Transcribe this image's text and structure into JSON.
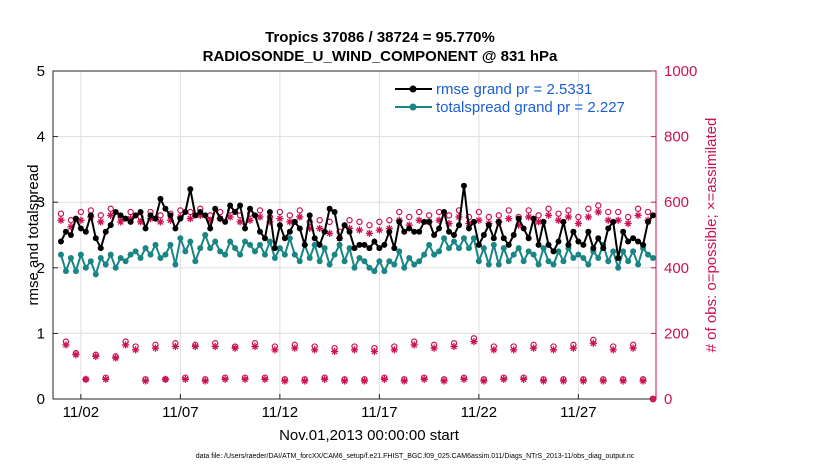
{
  "title_line1": "Tropics 37086 / 38724 = 95.770%",
  "title_line2": "RADIOSONDE_U_WIND_COMPONENT @ 831 hPa",
  "footer": "data file: /Users/raeder/DAI/ATM_forcXX/CAM6_setup/f.e21.FHIST_BGC.f09_025.CAM6assim.011/Diags_NTrS_2013-11/obs_diag_output.nc",
  "colors": {
    "rmse": "#000000",
    "spread": "#1a8585",
    "obs": "#cc1155",
    "legend_text": "#1a5fd8"
  },
  "chart_data": {
    "type": "line",
    "xlabel": "Nov.01,2013 00:00:00 start",
    "ylabel_left": "rmse and totalspread",
    "ylabel_right": "# of obs: o=possible; ×=assimilated",
    "xlim": [
      0.6,
      30.9
    ],
    "ylim_left": [
      0,
      5
    ],
    "ylim_right": [
      0,
      1000
    ],
    "x_ticks": [
      {
        "value": 2,
        "label": "11/02"
      },
      {
        "value": 7,
        "label": "11/07"
      },
      {
        "value": 12,
        "label": "11/12"
      },
      {
        "value": 17,
        "label": "11/17"
      },
      {
        "value": 22,
        "label": "11/22"
      },
      {
        "value": 27,
        "label": "11/27"
      }
    ],
    "y_ticks_left": [
      0,
      1,
      2,
      3,
      4,
      5
    ],
    "y_ticks_right": [
      0,
      200,
      400,
      600,
      800,
      1000
    ],
    "grid": true,
    "legend_position": "top-right",
    "x": [
      1.0,
      1.25,
      1.5,
      1.75,
      2.0,
      2.25,
      2.5,
      2.75,
      3.0,
      3.25,
      3.5,
      3.75,
      4.0,
      4.25,
      4.5,
      4.75,
      5.0,
      5.25,
      5.5,
      5.75,
      6.0,
      6.25,
      6.5,
      6.75,
      7.0,
      7.25,
      7.5,
      7.75,
      8.0,
      8.25,
      8.5,
      8.75,
      9.0,
      9.25,
      9.5,
      9.75,
      10.0,
      10.25,
      10.5,
      10.75,
      11.0,
      11.25,
      11.5,
      11.75,
      12.0,
      12.25,
      12.5,
      12.75,
      13.0,
      13.25,
      13.5,
      13.75,
      14.0,
      14.25,
      14.5,
      14.75,
      15.0,
      15.25,
      15.5,
      15.75,
      16.0,
      16.25,
      16.5,
      16.75,
      17.0,
      17.25,
      17.5,
      17.75,
      18.0,
      18.25,
      18.5,
      18.75,
      19.0,
      19.25,
      19.5,
      19.75,
      20.0,
      20.25,
      20.5,
      20.75,
      21.0,
      21.25,
      21.5,
      21.75,
      22.0,
      22.25,
      22.5,
      22.75,
      23.0,
      23.25,
      23.5,
      23.75,
      24.0,
      24.25,
      24.5,
      24.75,
      25.0,
      25.25,
      25.5,
      25.75,
      26.0,
      26.25,
      26.5,
      26.75,
      27.0,
      27.25,
      27.5,
      27.75,
      28.0,
      28.25,
      28.5,
      28.75,
      29.0,
      29.25,
      29.5,
      29.75,
      30.0,
      30.25,
      30.5,
      30.75
    ],
    "series": [
      {
        "name": "rmse",
        "legend": "rmse grand pr = 2.5331",
        "axis": "left",
        "values": [
          2.4,
          2.55,
          2.5,
          2.75,
          2.6,
          2.55,
          2.8,
          2.45,
          2.3,
          2.55,
          2.65,
          2.85,
          2.8,
          2.75,
          2.7,
          2.8,
          2.85,
          2.6,
          2.8,
          2.75,
          3.05,
          2.9,
          2.8,
          2.6,
          2.75,
          2.85,
          3.2,
          2.8,
          2.85,
          2.8,
          2.6,
          2.9,
          2.75,
          2.7,
          2.95,
          2.85,
          2.95,
          2.6,
          2.9,
          2.8,
          2.55,
          2.45,
          2.85,
          2.3,
          2.65,
          2.45,
          2.55,
          2.7,
          2.6,
          2.35,
          2.8,
          2.45,
          2.35,
          2.55,
          2.9,
          2.85,
          2.45,
          2.65,
          2.55,
          2.3,
          2.35,
          2.35,
          2.3,
          2.4,
          2.3,
          2.35,
          2.55,
          2.3,
          2.7,
          2.55,
          2.6,
          2.55,
          2.55,
          2.7,
          2.7,
          2.5,
          2.6,
          2.85,
          2.55,
          2.5,
          2.65,
          3.25,
          2.6,
          2.7,
          2.35,
          2.5,
          2.65,
          2.45,
          2.7,
          2.45,
          2.35,
          2.5,
          2.75,
          2.6,
          2.45,
          2.75,
          2.35,
          2.7,
          2.35,
          2.25,
          2.4,
          2.7,
          2.35,
          2.55,
          2.4,
          2.35,
          2.55,
          2.3,
          2.45,
          2.3,
          2.6,
          2.7,
          2.15,
          2.55,
          2.4,
          2.45,
          2.4,
          2.35,
          2.7,
          2.8
        ]
      },
      {
        "name": "totalspread",
        "legend": "totalspread grand pr = 2.227",
        "axis": "left",
        "values": [
          2.2,
          1.95,
          2.15,
          1.95,
          2.2,
          2.0,
          2.1,
          1.9,
          2.15,
          2.05,
          2.2,
          2.0,
          2.15,
          2.1,
          2.2,
          2.25,
          2.15,
          2.3,
          2.2,
          2.35,
          2.15,
          2.2,
          2.35,
          2.05,
          2.45,
          2.25,
          2.4,
          2.1,
          2.3,
          2.5,
          2.3,
          2.4,
          2.25,
          2.2,
          2.4,
          2.3,
          2.2,
          2.4,
          2.35,
          2.25,
          2.35,
          2.2,
          2.4,
          2.15,
          2.3,
          2.2,
          2.45,
          2.2,
          2.1,
          2.35,
          2.15,
          2.35,
          2.1,
          2.3,
          2.05,
          2.2,
          2.35,
          2.1,
          2.3,
          2.0,
          2.15,
          2.1,
          2.0,
          1.95,
          2.1,
          1.95,
          2.1,
          2.05,
          2.25,
          2.0,
          2.15,
          2.05,
          2.1,
          2.2,
          2.35,
          2.2,
          2.25,
          2.45,
          2.3,
          2.4,
          2.3,
          2.45,
          2.3,
          2.45,
          2.1,
          2.3,
          2.05,
          2.35,
          2.05,
          2.3,
          2.1,
          2.2,
          2.3,
          2.1,
          2.25,
          2.2,
          2.05,
          2.3,
          2.1,
          2.05,
          2.25,
          2.1,
          2.3,
          2.15,
          2.2,
          2.15,
          2.05,
          2.25,
          2.15,
          2.35,
          2.1,
          2.25,
          2.0,
          2.25,
          2.1,
          2.25,
          2.05,
          2.3,
          2.2,
          2.15
        ]
      },
      {
        "name": "obs_possible",
        "axis": "right",
        "marker": "o",
        "values": [
          565,
          175,
          545,
          140,
          570,
          60,
          575,
          135,
          560,
          65,
          580,
          130,
          555,
          175,
          570,
          160,
          555,
          60,
          570,
          165,
          560,
          60,
          565,
          170,
          575,
          65,
          570,
          165,
          580,
          60,
          560,
          170,
          570,
          65,
          575,
          160,
          560,
          65,
          565,
          170,
          575,
          65,
          555,
          160,
          570,
          60,
          560,
          165,
          575,
          60,
          540,
          160,
          545,
          65,
          540,
          155,
          510,
          60,
          545,
          160,
          540,
          60,
          530,
          155,
          540,
          65,
          545,
          160,
          570,
          60,
          555,
          175,
          570,
          65,
          560,
          165,
          570,
          60,
          560,
          170,
          575,
          65,
          555,
          185,
          570,
          60,
          555,
          160,
          560,
          65,
          575,
          160,
          555,
          65,
          575,
          165,
          560,
          60,
          580,
          160,
          565,
          60,
          575,
          165,
          555,
          60,
          580,
          180,
          590,
          60,
          570,
          160,
          570,
          60,
          555,
          165,
          580,
          60,
          570,
          0
        ]
      },
      {
        "name": "obs_assimilated",
        "axis": "right",
        "marker": "*",
        "values": [
          545,
          165,
          525,
          135,
          545,
          60,
          555,
          130,
          540,
          60,
          560,
          125,
          540,
          165,
          550,
          150,
          540,
          55,
          550,
          155,
          540,
          60,
          545,
          160,
          555,
          60,
          550,
          160,
          560,
          55,
          545,
          160,
          550,
          60,
          555,
          155,
          540,
          60,
          545,
          160,
          555,
          60,
          540,
          150,
          550,
          55,
          540,
          155,
          555,
          55,
          520,
          150,
          520,
          60,
          505,
          145,
          490,
          55,
          520,
          150,
          515,
          55,
          505,
          145,
          515,
          60,
          520,
          150,
          545,
          55,
          530,
          165,
          545,
          60,
          540,
          155,
          545,
          55,
          535,
          160,
          555,
          60,
          535,
          175,
          545,
          55,
          535,
          150,
          540,
          60,
          550,
          150,
          530,
          60,
          555,
          155,
          540,
          55,
          560,
          150,
          545,
          55,
          555,
          155,
          535,
          55,
          555,
          170,
          570,
          55,
          545,
          150,
          545,
          55,
          535,
          155,
          560,
          55,
          545,
          0
        ]
      }
    ]
  }
}
